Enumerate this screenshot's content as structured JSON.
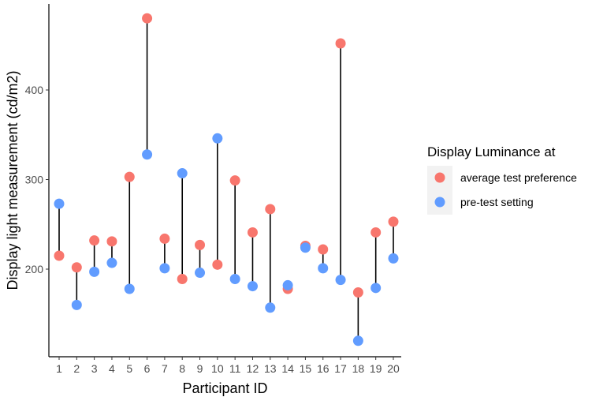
{
  "chart_data": {
    "type": "scatter",
    "xlabel": "Participant ID",
    "ylabel": "Display light measurement (cd/m2)",
    "categories": [
      "1",
      "2",
      "3",
      "4",
      "5",
      "6",
      "7",
      "8",
      "9",
      "10",
      "11",
      "12",
      "13",
      "14",
      "15",
      "16",
      "17",
      "18",
      "19",
      "20"
    ],
    "y_ticks": [
      200,
      300,
      400
    ],
    "ylim": [
      110,
      495
    ],
    "grid": false,
    "legend": {
      "title": "Display Luminance at",
      "position": "right"
    },
    "series": [
      {
        "name": "average test preference",
        "color": "#F8766D",
        "values": [
          215,
          202,
          232,
          231,
          303,
          480,
          234,
          189,
          227,
          205,
          299,
          241,
          267,
          178,
          226,
          222,
          452,
          174,
          241,
          253
        ]
      },
      {
        "name": "pre-test setting",
        "color": "#619CFF",
        "values": [
          273,
          160,
          197,
          207,
          178,
          328,
          201,
          307,
          196,
          346,
          189,
          181,
          157,
          182,
          224,
          201,
          188,
          120,
          179,
          212
        ]
      }
    ]
  }
}
